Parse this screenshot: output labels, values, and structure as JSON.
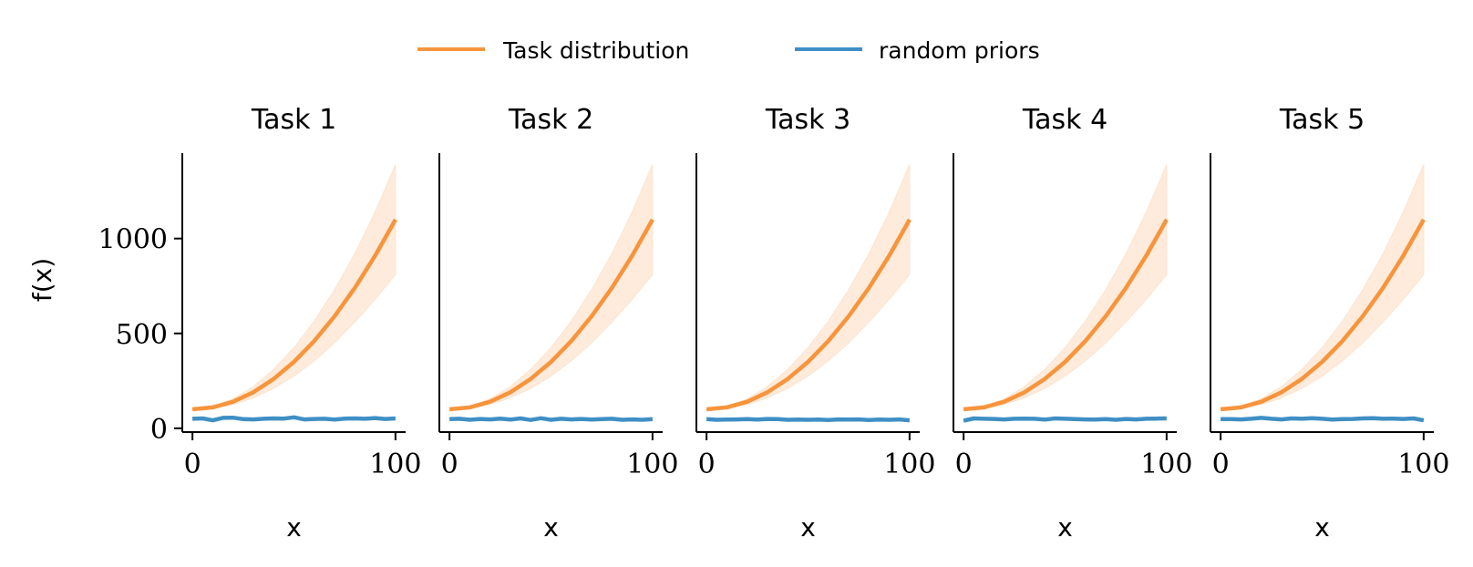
{
  "legend": {
    "placement": "top-center",
    "entries": [
      {
        "label": "Task distribution",
        "color": "#f7943c"
      },
      {
        "label": "random priors",
        "color": "#3f8fc4"
      }
    ]
  },
  "ylabel": "f(x)",
  "xlabel": "x",
  "colors": {
    "task": "#f7943c",
    "band": "#fde4cf",
    "random": "#3f8fc4",
    "axis": "#000000"
  },
  "chart_data": [
    {
      "type": "line",
      "title": "Task 1",
      "xlabel": "x",
      "ylabel": "f(x)",
      "xlim": [
        -5,
        105
      ],
      "ylim": [
        -20,
        1450
      ],
      "xticks": [
        0,
        100
      ],
      "yticks": [
        0,
        500,
        1000
      ],
      "grid": false,
      "series": [
        {
          "name": "Task distribution",
          "x": [
            0,
            10,
            20,
            30,
            40,
            50,
            60,
            70,
            80,
            90,
            100
          ],
          "y": [
            100,
            110,
            140,
            190,
            260,
            350,
            460,
            590,
            740,
            910,
            1100
          ],
          "band_lower": [
            100,
            105,
            125,
            160,
            210,
            275,
            355,
            450,
            560,
            680,
            810
          ],
          "band_upper": [
            100,
            115,
            155,
            220,
            310,
            425,
            565,
            730,
            920,
            1140,
            1390
          ]
        },
        {
          "name": "random priors",
          "x": [
            0,
            5,
            10,
            15,
            20,
            25,
            30,
            35,
            40,
            45,
            50,
            55,
            60,
            65,
            70,
            75,
            80,
            85,
            90,
            95,
            100
          ],
          "y": [
            50,
            52,
            42,
            55,
            56,
            48,
            47,
            50,
            52,
            51,
            58,
            47,
            49,
            50,
            46,
            51,
            52,
            50,
            54,
            49,
            52
          ]
        }
      ]
    },
    {
      "type": "line",
      "title": "Task 2",
      "xlabel": "x",
      "ylabel": "",
      "xlim": [
        -5,
        105
      ],
      "ylim": [
        -20,
        1450
      ],
      "xticks": [
        0,
        100
      ],
      "yticks": [],
      "grid": false,
      "series": [
        {
          "name": "Task distribution",
          "x": [
            0,
            10,
            20,
            30,
            40,
            50,
            60,
            70,
            80,
            90,
            100
          ],
          "y": [
            100,
            110,
            140,
            190,
            260,
            350,
            460,
            590,
            740,
            910,
            1100
          ],
          "band_lower": [
            100,
            105,
            125,
            160,
            210,
            275,
            355,
            450,
            560,
            680,
            810
          ],
          "band_upper": [
            100,
            115,
            155,
            220,
            310,
            425,
            565,
            730,
            920,
            1140,
            1390
          ]
        },
        {
          "name": "random priors",
          "x": [
            0,
            5,
            10,
            15,
            20,
            25,
            30,
            35,
            40,
            45,
            50,
            55,
            60,
            65,
            70,
            75,
            80,
            85,
            90,
            95,
            100
          ],
          "y": [
            48,
            50,
            45,
            49,
            47,
            51,
            46,
            52,
            44,
            53,
            45,
            50,
            47,
            49,
            46,
            48,
            50,
            45,
            47,
            45,
            48
          ]
        }
      ]
    },
    {
      "type": "line",
      "title": "Task 3",
      "xlabel": "x",
      "ylabel": "",
      "xlim": [
        -5,
        105
      ],
      "ylim": [
        -20,
        1450
      ],
      "xticks": [
        0,
        100
      ],
      "yticks": [],
      "grid": false,
      "series": [
        {
          "name": "Task distribution",
          "x": [
            0,
            10,
            20,
            30,
            40,
            50,
            60,
            70,
            80,
            90,
            100
          ],
          "y": [
            100,
            110,
            140,
            190,
            260,
            350,
            460,
            590,
            740,
            910,
            1100
          ],
          "band_lower": [
            100,
            105,
            125,
            160,
            210,
            275,
            355,
            450,
            560,
            680,
            810
          ],
          "band_upper": [
            100,
            115,
            155,
            220,
            310,
            425,
            565,
            730,
            920,
            1140,
            1390
          ]
        },
        {
          "name": "random priors",
          "x": [
            0,
            5,
            10,
            15,
            20,
            25,
            30,
            35,
            40,
            45,
            50,
            55,
            60,
            65,
            70,
            75,
            80,
            85,
            90,
            95,
            100
          ],
          "y": [
            48,
            45,
            46,
            47,
            48,
            46,
            49,
            48,
            45,
            46,
            45,
            46,
            44,
            47,
            46,
            47,
            44,
            46,
            45,
            47,
            42
          ]
        }
      ]
    },
    {
      "type": "line",
      "title": "Task 4",
      "xlabel": "x",
      "ylabel": "",
      "xlim": [
        -5,
        105
      ],
      "ylim": [
        -20,
        1450
      ],
      "xticks": [
        0,
        100
      ],
      "yticks": [],
      "grid": false,
      "series": [
        {
          "name": "Task distribution",
          "x": [
            0,
            10,
            20,
            30,
            40,
            50,
            60,
            70,
            80,
            90,
            100
          ],
          "y": [
            100,
            110,
            140,
            190,
            260,
            350,
            460,
            590,
            740,
            910,
            1100
          ],
          "band_lower": [
            100,
            105,
            125,
            160,
            210,
            275,
            355,
            450,
            560,
            680,
            810
          ],
          "band_upper": [
            100,
            115,
            155,
            220,
            310,
            425,
            565,
            730,
            920,
            1140,
            1390
          ]
        },
        {
          "name": "random priors",
          "x": [
            0,
            5,
            10,
            15,
            20,
            25,
            30,
            35,
            40,
            45,
            50,
            55,
            60,
            65,
            70,
            75,
            80,
            85,
            90,
            95,
            100
          ],
          "y": [
            40,
            52,
            50,
            49,
            47,
            50,
            51,
            50,
            46,
            52,
            50,
            48,
            47,
            46,
            48,
            45,
            49,
            47,
            50,
            51,
            52
          ]
        }
      ]
    },
    {
      "type": "line",
      "title": "Task 5",
      "xlabel": "x",
      "ylabel": "",
      "xlim": [
        -5,
        105
      ],
      "ylim": [
        -20,
        1450
      ],
      "xticks": [
        0,
        100
      ],
      "yticks": [],
      "grid": false,
      "series": [
        {
          "name": "Task distribution",
          "x": [
            0,
            10,
            20,
            30,
            40,
            50,
            60,
            70,
            80,
            90,
            100
          ],
          "y": [
            100,
            110,
            140,
            190,
            260,
            350,
            460,
            590,
            740,
            910,
            1100
          ],
          "band_lower": [
            100,
            105,
            125,
            160,
            210,
            275,
            355,
            450,
            560,
            680,
            810
          ],
          "band_upper": [
            100,
            115,
            155,
            220,
            310,
            425,
            565,
            730,
            920,
            1140,
            1390
          ]
        },
        {
          "name": "random priors",
          "x": [
            0,
            5,
            10,
            15,
            20,
            25,
            30,
            35,
            40,
            45,
            50,
            55,
            60,
            65,
            70,
            75,
            80,
            85,
            90,
            95,
            100
          ],
          "y": [
            48,
            48,
            47,
            50,
            55,
            50,
            47,
            52,
            50,
            53,
            50,
            46,
            48,
            49,
            52,
            53,
            50,
            51,
            49,
            52,
            42
          ]
        }
      ]
    }
  ]
}
